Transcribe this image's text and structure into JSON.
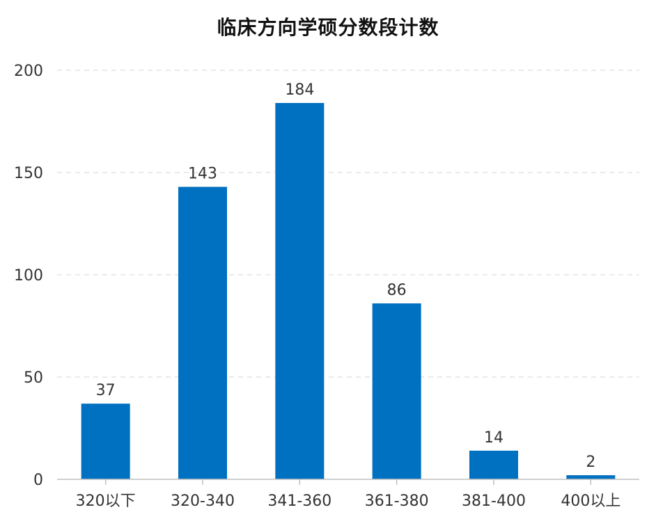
{
  "chart_data": {
    "type": "bar",
    "title": "临床方向学硕分数段计数",
    "xlabel": "",
    "ylabel": "",
    "categories": [
      "320以下",
      "320-340",
      "341-360",
      "361-380",
      "381-400",
      "400以上"
    ],
    "values": [
      37,
      143,
      184,
      86,
      14,
      2
    ],
    "data_labels": [
      "37",
      "143",
      "184",
      "86",
      "14",
      "2"
    ],
    "ylim": [
      0,
      200
    ],
    "yticks": [
      "0",
      "50",
      "100",
      "150",
      "200"
    ],
    "ytick_values": [
      0,
      50,
      100,
      150,
      200
    ],
    "grid": true,
    "legend": "none"
  },
  "colors": {
    "bar": "#0070c0",
    "grid": "#e3e3e3",
    "axis": "#bfbfbf",
    "text": "#333333"
  }
}
